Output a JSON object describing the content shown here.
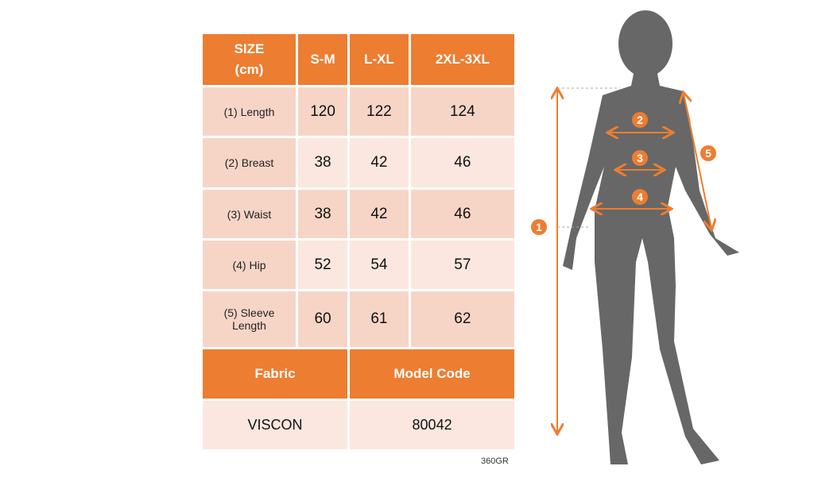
{
  "table": {
    "header": [
      "SIZE\n(cm)",
      "S-M",
      "L-XL",
      "2XL-3XL"
    ],
    "rows": [
      {
        "label": "(1) Length",
        "values": [
          "120",
          "122",
          "124"
        ]
      },
      {
        "label": "(2) Breast",
        "values": [
          "38",
          "42",
          "46"
        ]
      },
      {
        "label": "(3) Waist",
        "values": [
          "38",
          "42",
          "46"
        ]
      },
      {
        "label": "(4) Hip",
        "values": [
          "52",
          "54",
          "57"
        ]
      },
      {
        "label": "(5) Sleeve Length",
        "values": [
          "60",
          "61",
          "62"
        ]
      }
    ],
    "fabric_label": "Fabric",
    "model_code_label": "Model Code",
    "fabric": "VISCON",
    "model_code": "80042"
  },
  "footnote": "360GR",
  "figure": {
    "markers": [
      "1",
      "2",
      "3",
      "4",
      "5"
    ],
    "accent": "#ED7D31",
    "silhouette": "#676767"
  }
}
